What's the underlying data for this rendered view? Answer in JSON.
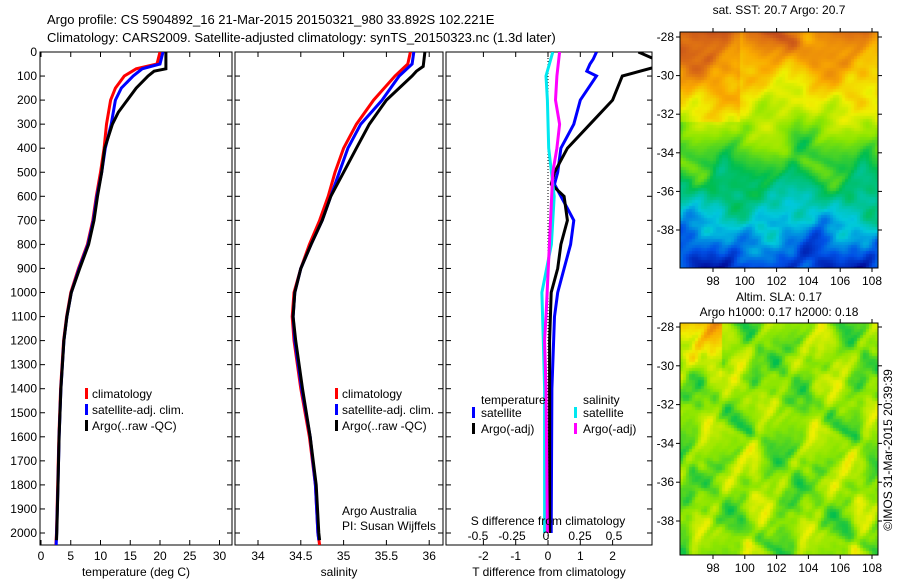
{
  "header": {
    "line1": "Argo profile: CS 5904892_16 21-Mar-2015 20150321_980 33.892S 102.221E",
    "line2": "Climatology: CARS2009. Satellite-adjusted climatology: synTS_20150323.nc (1.3d later)"
  },
  "credit": "©IMOS 31-Mar-2015 20:39:39",
  "colors": {
    "clim": "#ff0000",
    "sat": "#0000ff",
    "argo": "#000000",
    "s_sat": "#00e8f0",
    "s_argo": "#ff00ff"
  },
  "chart_data": [
    {
      "type": "line",
      "id": "temp",
      "xlabel": "temperature (deg C)",
      "xlim": [
        -1.5,
        31.5
      ],
      "xticks": [
        0,
        5,
        10,
        15,
        20,
        25,
        30
      ],
      "ylim": [
        0,
        2050
      ],
      "yticks": [
        0,
        100,
        200,
        300,
        400,
        500,
        600,
        700,
        800,
        900,
        1000,
        1100,
        1200,
        1300,
        1400,
        1500,
        1600,
        1700,
        1800,
        1900,
        2000
      ],
      "legend": [
        "climatology",
        "satellite-adj. clim.",
        "Argo(..raw -QC)"
      ],
      "series": [
        {
          "name": "climatology",
          "color": "clim",
          "depth": [
            0,
            50,
            70,
            100,
            150,
            200,
            300,
            400,
            500,
            600,
            700,
            800,
            900,
            1000,
            1100,
            1200,
            1400,
            1600,
            1800,
            2000,
            2050
          ],
          "values": [
            20,
            19.5,
            16,
            14,
            12.5,
            11.7,
            11,
            10.6,
            10,
            9.3,
            8.7,
            7.8,
            6.3,
            5,
            4.3,
            3.8,
            3.3,
            3,
            2.8,
            2.6,
            2.5
          ]
        },
        {
          "name": "satellite-adj. clim.",
          "color": "sat",
          "depth": [
            0,
            50,
            70,
            100,
            150,
            200,
            300,
            400,
            500,
            600,
            700,
            800,
            900,
            1000,
            1100,
            1200,
            1400,
            1600,
            1800,
            2000,
            2050
          ],
          "values": [
            20.5,
            20,
            17,
            15.5,
            13.5,
            12.5,
            11.8,
            10.8,
            10.2,
            9.4,
            8.8,
            7.9,
            6.4,
            5.1,
            4.35,
            3.85,
            3.35,
            3.05,
            2.85,
            2.62,
            2.55
          ]
        },
        {
          "name": "Argo(..raw -QC)",
          "color": "argo",
          "depth": [
            0,
            70,
            80,
            100,
            150,
            200,
            250,
            300,
            400,
            500,
            600,
            700,
            800,
            900,
            1000,
            1100,
            1200,
            1400,
            1600,
            1800,
            2000,
            2030
          ],
          "values": [
            21,
            21,
            19,
            18,
            16,
            14.5,
            13,
            12,
            10.7,
            10.2,
            9.5,
            8.9,
            8,
            6.5,
            5.1,
            4.35,
            3.85,
            3.35,
            3.05,
            2.85,
            2.65,
            2.6
          ]
        }
      ]
    },
    {
      "type": "line",
      "id": "sal",
      "xlabel": "salinity",
      "xlim": [
        33.7,
        36.05
      ],
      "xticks": [
        34,
        34.5,
        35,
        35.5,
        36
      ],
      "ylim": [
        0,
        2050
      ],
      "legend": [
        "climatology",
        "satellite-adj. clim.",
        "Argo(..raw -QC)"
      ],
      "annotation": [
        "Argo Australia",
        "PI: Susan Wijffels"
      ],
      "series": [
        {
          "name": "climatology",
          "color": "clim",
          "depth": [
            0,
            50,
            100,
            200,
            300,
            400,
            500,
            600,
            700,
            800,
            900,
            1000,
            1100,
            1200,
            1400,
            1600,
            1800,
            2000,
            2050
          ],
          "values": [
            35.78,
            35.75,
            35.6,
            35.35,
            35.15,
            35.0,
            34.9,
            34.82,
            34.72,
            34.6,
            34.5,
            34.42,
            34.4,
            34.42,
            34.5,
            34.6,
            34.67,
            34.7,
            34.72
          ]
        },
        {
          "name": "satellite-adj. clim.",
          "color": "sat",
          "depth": [
            0,
            50,
            100,
            200,
            300,
            400,
            500,
            600,
            700,
            800,
            900,
            1000,
            1100,
            1200,
            1400,
            1600,
            1800,
            2000,
            2030
          ],
          "values": [
            35.82,
            35.8,
            35.65,
            35.45,
            35.2,
            35.05,
            34.95,
            34.85,
            34.75,
            34.62,
            34.5,
            34.43,
            34.41,
            34.43,
            34.51,
            34.61,
            34.67,
            34.7,
            34.71
          ]
        },
        {
          "name": "Argo(..raw -QC)",
          "color": "argo",
          "depth": [
            0,
            60,
            80,
            100,
            200,
            300,
            400,
            500,
            600,
            700,
            800,
            900,
            1000,
            1100,
            1200,
            1400,
            1600,
            1800,
            2000,
            2030
          ],
          "values": [
            35.95,
            35.93,
            35.85,
            35.8,
            35.5,
            35.3,
            35.15,
            35.0,
            34.85,
            34.75,
            34.62,
            34.5,
            34.43,
            34.41,
            34.44,
            34.52,
            34.61,
            34.68,
            34.71,
            34.72
          ]
        }
      ]
    },
    {
      "type": "line",
      "id": "diff",
      "xlabel": "T difference from climatology",
      "xlim": [
        -3,
        3.2
      ],
      "xticks": [
        -2,
        -1,
        0,
        1,
        2
      ],
      "x2label": "S difference from climatology",
      "x2ticks": [
        "-0.5",
        "-0.25",
        "0",
        "0.25",
        "0.5"
      ],
      "x2values": [
        -0.5,
        -0.25,
        0,
        0.25,
        0.5
      ],
      "ylim": [
        0,
        2050
      ],
      "legend_temp": {
        "title": "temperature",
        "items": [
          "satellite",
          "Argo(-adj)"
        ]
      },
      "legend_sal": {
        "title": "salinity",
        "items": [
          "satellite",
          "Argo(-adj)"
        ]
      },
      "series": [
        {
          "name": "temperature satellite",
          "color": "sat",
          "var": "T",
          "depth": [
            0,
            30,
            50,
            80,
            100,
            200,
            300,
            400,
            500,
            550,
            600,
            650,
            700,
            800,
            900,
            1000,
            1100,
            1400,
            2000
          ],
          "values": [
            1.5,
            1.4,
            1.3,
            1.2,
            1.5,
            1.0,
            0.8,
            0.4,
            0.3,
            0.2,
            0.4,
            0.6,
            0.8,
            0.7,
            0.5,
            0.3,
            0.2,
            0.12,
            0.1
          ]
        },
        {
          "name": "temperature Argo(-adj)",
          "color": "argo",
          "var": "T",
          "depth": [
            0,
            30,
            60,
            100,
            200,
            300,
            400,
            500,
            550,
            600,
            700,
            800,
            900,
            1000,
            1200,
            2000
          ],
          "values": [
            2.8,
            3.3,
            3.4,
            2.3,
            2.0,
            1.3,
            0.6,
            0.2,
            0.1,
            0.5,
            0.6,
            0.4,
            0.3,
            0.1,
            0.05,
            0.05
          ]
        },
        {
          "name": "salinity satellite",
          "color": "s_sat",
          "var": "S",
          "depth": [
            0,
            100,
            200,
            400,
            600,
            800,
            1000,
            1200,
            1400,
            2000
          ],
          "values": [
            0.05,
            0.0,
            0.01,
            0.02,
            0.06,
            0.04,
            -0.03,
            -0.02,
            -0.01,
            -0.01
          ]
        },
        {
          "name": "salinity Argo(-adj)",
          "color": "s_argo",
          "var": "S",
          "depth": [
            0,
            100,
            200,
            300,
            400,
            500,
            1100,
            1200,
            1400,
            2000
          ],
          "values": [
            0.1,
            0.08,
            0.07,
            0.1,
            0.08,
            0.05,
            0.0,
            -0.01,
            0.0,
            0.01
          ]
        }
      ]
    },
    {
      "type": "heatmap",
      "id": "sst",
      "title": "sat. SST: 20.7 Argo: 20.7",
      "xlim": [
        96.2,
        108.3
      ],
      "ylim": [
        -39.7,
        -28
      ],
      "xticks": [
        98,
        100,
        102,
        104,
        106,
        108
      ],
      "yticks": [
        -28,
        -30,
        -32,
        -34,
        -36,
        -38
      ]
    },
    {
      "type": "heatmap",
      "id": "sla",
      "title": [
        "Altim. SLA: 0.17",
        "Argo h1000: 0.17 h2000: 0.18"
      ],
      "xlim": [
        96.2,
        108.3
      ],
      "ylim": [
        -39.7,
        -28
      ],
      "xticks": [
        98,
        100,
        102,
        104,
        106,
        108
      ],
      "yticks": [
        -28,
        -30,
        -32,
        -34,
        -36,
        -38
      ]
    }
  ]
}
